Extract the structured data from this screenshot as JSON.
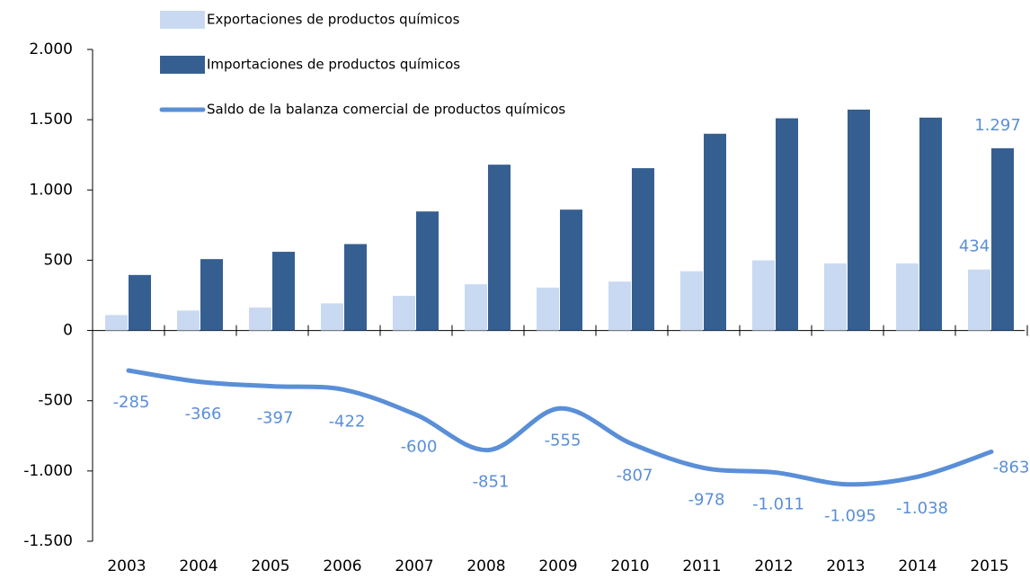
{
  "chart_data": {
    "type": "bar_line",
    "categories": [
      "2003",
      "2004",
      "2005",
      "2006",
      "2007",
      "2008",
      "2009",
      "2010",
      "2011",
      "2012",
      "2013",
      "2014",
      "2015"
    ],
    "series": [
      {
        "name": "Exportaciones de productos químicos",
        "type": "bar",
        "color": "#c9d9f1",
        "values": [
          110,
          142,
          163,
          193,
          247,
          329,
          305,
          348,
          422,
          499,
          477,
          477,
          434
        ],
        "value_labels": [
          null,
          null,
          null,
          null,
          null,
          null,
          null,
          null,
          null,
          null,
          null,
          null,
          "434"
        ]
      },
      {
        "name": "Importaciones de productos químicos",
        "type": "bar",
        "color": "#365f91",
        "values": [
          395,
          508,
          560,
          615,
          847,
          1180,
          860,
          1155,
          1400,
          1510,
          1572,
          1515,
          1297
        ],
        "value_labels": [
          null,
          null,
          null,
          null,
          null,
          null,
          null,
          null,
          null,
          null,
          null,
          null,
          "1.297"
        ]
      },
      {
        "name": "Saldo de la balanza comercial de productos químicos",
        "type": "line",
        "color": "#5a8fd8",
        "values": [
          -285,
          -366,
          -397,
          -422,
          -600,
          -851,
          -555,
          -807,
          -978,
          -1011,
          -1095,
          -1038,
          -863
        ],
        "value_labels": [
          "-285",
          "-366",
          "-397",
          "-422",
          "-600",
          "-851",
          "-555",
          "-807",
          "-978",
          "-1.011",
          "-1.095",
          "-1.038",
          "-863"
        ]
      }
    ],
    "ylim": [
      -1500,
      2000
    ],
    "yticks": [
      {
        "value": -1500,
        "label": "-1.500"
      },
      {
        "value": -1000,
        "label": "-1.000"
      },
      -500,
      0,
      500,
      {
        "value": 1000,
        "label": "1.000"
      },
      {
        "value": 1500,
        "label": "1.500"
      },
      {
        "value": 2000,
        "label": "2.000"
      }
    ],
    "legend": "top"
  }
}
